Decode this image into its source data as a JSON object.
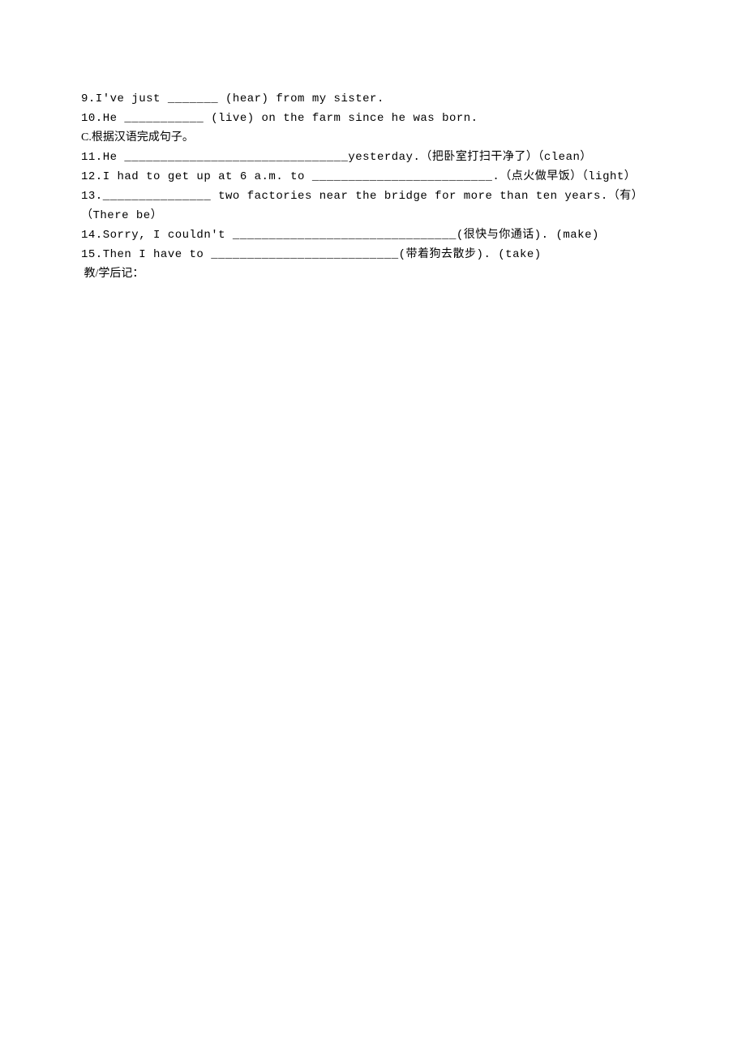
{
  "lines": [
    {
      "text": "9.I've just _______ (hear) from my sister.",
      "cls": "line mono"
    },
    {
      "text": "10.He ___________ (live) on the farm since he was born.",
      "cls": "line mono"
    },
    {
      "text": "C.根据汉语完成句子。",
      "cls": "line"
    },
    {
      "text": "11.He _______________________________yesterday.（把卧室打扫干净了）（clean）",
      "cls": "line mono"
    },
    {
      "text": "12.I had to get up at 6 a.m. to _________________________.（点火做早饭）（light）",
      "cls": "line mono"
    },
    {
      "text": "13._______________ two factories near the bridge for more than ten years.（有）（There be）",
      "cls": "line mono"
    },
    {
      "text": "14.Sorry, I couldn't _______________________________(很快与你通话). (make)",
      "cls": "line mono"
    },
    {
      "text": "15.Then I have to __________________________(带着狗去散步). (take)",
      "cls": "line mono"
    },
    {
      "text": " 教/学后记：",
      "cls": "line"
    }
  ]
}
